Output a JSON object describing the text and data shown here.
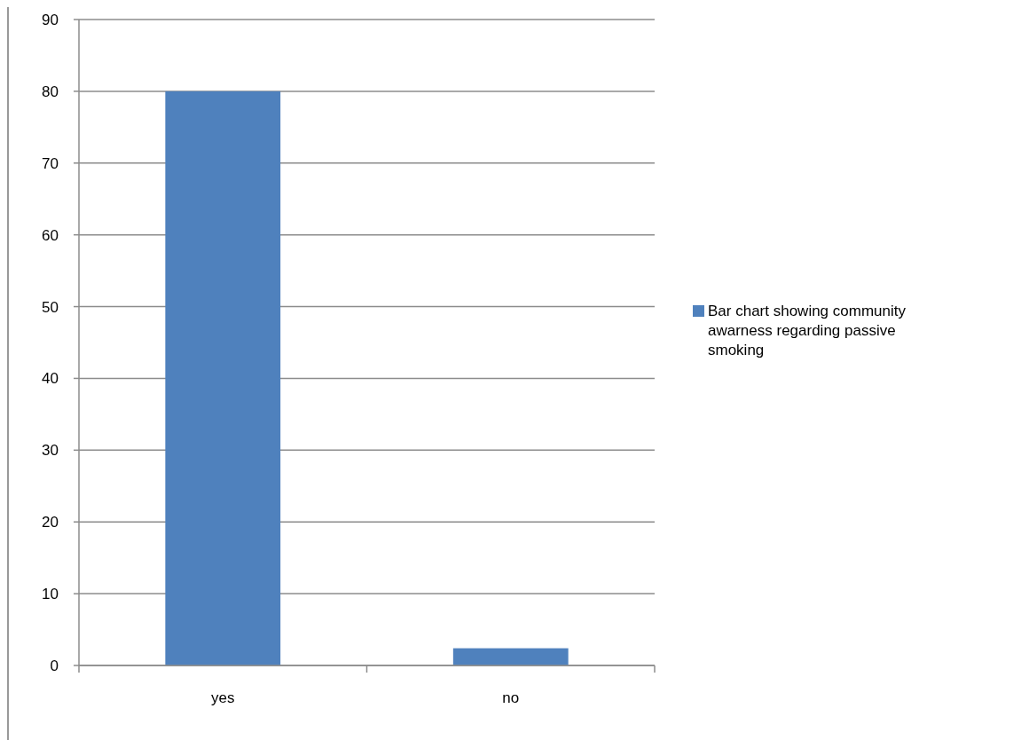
{
  "chart_data": {
    "type": "bar",
    "categories": [
      "yes",
      "no"
    ],
    "series": [
      {
        "name": "Bar chart showing community awarness regarding passive smoking",
        "color": "#4f81bd",
        "values": [
          80,
          2.4
        ]
      }
    ],
    "ylim": [
      0,
      90
    ],
    "yticks": [
      0,
      10,
      20,
      30,
      40,
      50,
      60,
      70,
      80,
      90
    ],
    "grid": "y",
    "legend": "right"
  }
}
